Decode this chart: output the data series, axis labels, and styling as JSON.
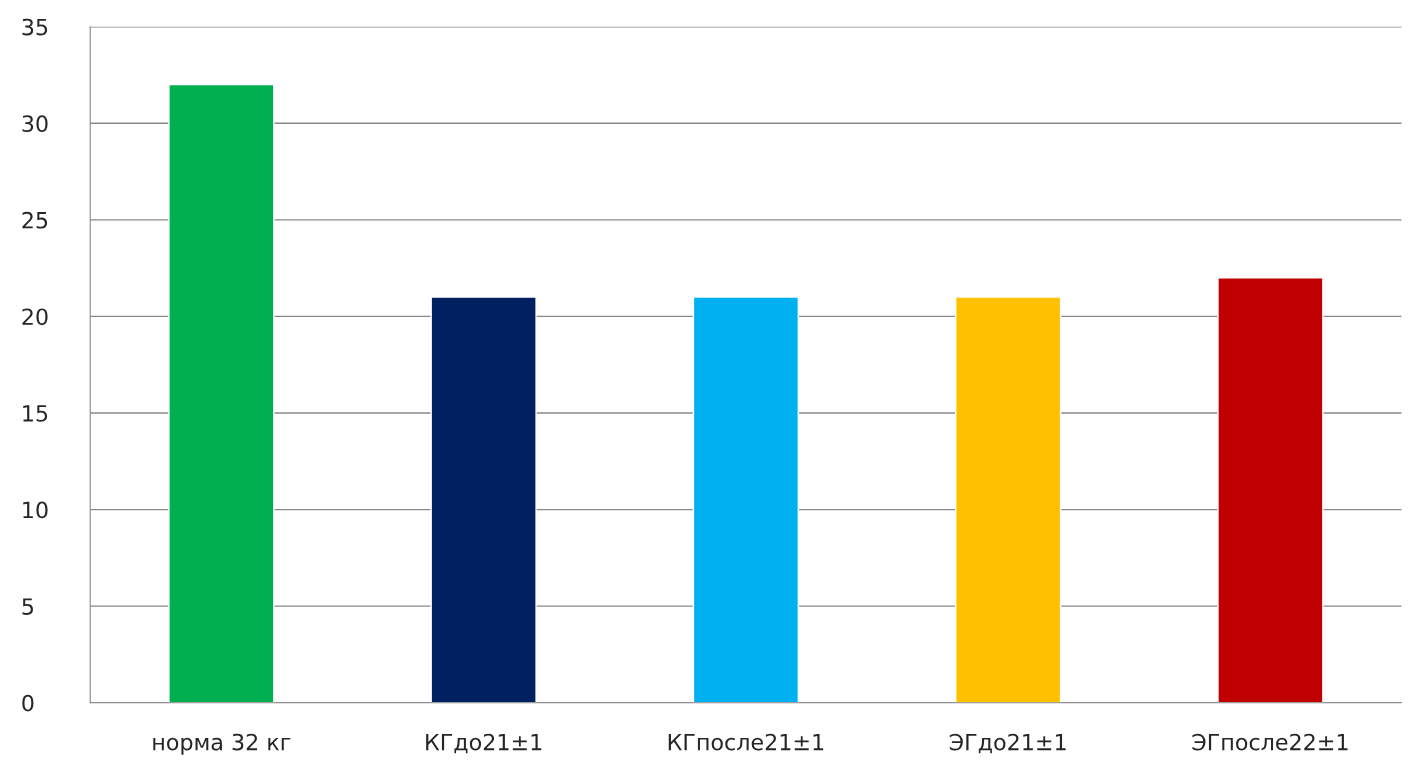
{
  "chart_data": {
    "type": "bar",
    "categories": [
      "норма 32 кг",
      "КГдо21±1",
      "КГпосле21±1",
      "ЭГдо21±1",
      "ЭГпосле22±1"
    ],
    "values": [
      32,
      21,
      21,
      21,
      22
    ],
    "colors": [
      "#00b050",
      "#002060",
      "#00b0f0",
      "#ffc000",
      "#c00000"
    ],
    "ylim": [
      0,
      35
    ],
    "yticks": [
      0,
      5,
      10,
      15,
      20,
      25,
      30,
      35
    ],
    "grid": "y"
  }
}
